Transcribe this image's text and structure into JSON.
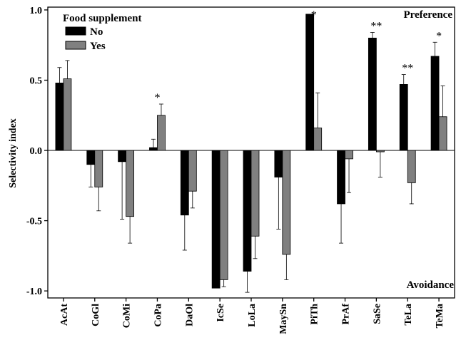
{
  "chart_data": {
    "type": "bar",
    "ylabel": "Selectivity index",
    "ylim": [
      -1.05,
      1.02
    ],
    "yticks": [
      -1.0,
      -0.5,
      0.0,
      0.5,
      1.0
    ],
    "ytick_labels": [
      "-1.0",
      "-0.5",
      "0.0",
      "0.5",
      "1.0"
    ],
    "categories": [
      "AcAt",
      "CoGl",
      "CoMi",
      "CoPa",
      "DaOl",
      "IcSe",
      "LoLa",
      "MaySn",
      "PiTh",
      "PrAf",
      "SaSe",
      "TeLa",
      "TeMa"
    ],
    "legend_title": "Food supplement",
    "legend_position": "top-left",
    "series": [
      {
        "name": "No",
        "color": "#000000",
        "values": [
          0.48,
          -0.1,
          -0.08,
          0.02,
          -0.46,
          -0.98,
          -0.86,
          -0.19,
          0.97,
          -0.38,
          0.8,
          0.47,
          0.67
        ],
        "error": [
          0.11,
          0.16,
          0.41,
          0.06,
          0.25,
          0.0,
          0.15,
          0.37,
          0.0,
          0.28,
          0.04,
          0.07,
          0.1
        ]
      },
      {
        "name": "Yes",
        "color": "#808080",
        "values": [
          0.51,
          -0.26,
          -0.47,
          0.25,
          -0.29,
          -0.92,
          -0.61,
          -0.74,
          0.16,
          -0.06,
          -0.01,
          -0.23,
          0.24
        ],
        "error": [
          0.13,
          0.17,
          0.19,
          0.08,
          0.12,
          0.05,
          0.16,
          0.18,
          0.25,
          0.24,
          0.18,
          0.15,
          0.22
        ]
      }
    ],
    "significance": [
      {
        "category": "CoPa",
        "mark": "*"
      },
      {
        "category": "PiTh",
        "mark": "*"
      },
      {
        "category": "SaSe",
        "mark": "**"
      },
      {
        "category": "TeLa",
        "mark": "**"
      },
      {
        "category": "TeMa",
        "mark": "*"
      }
    ],
    "corner_labels": {
      "top_right": "Preference",
      "bottom_right": "Avoidance"
    },
    "grid": false
  }
}
